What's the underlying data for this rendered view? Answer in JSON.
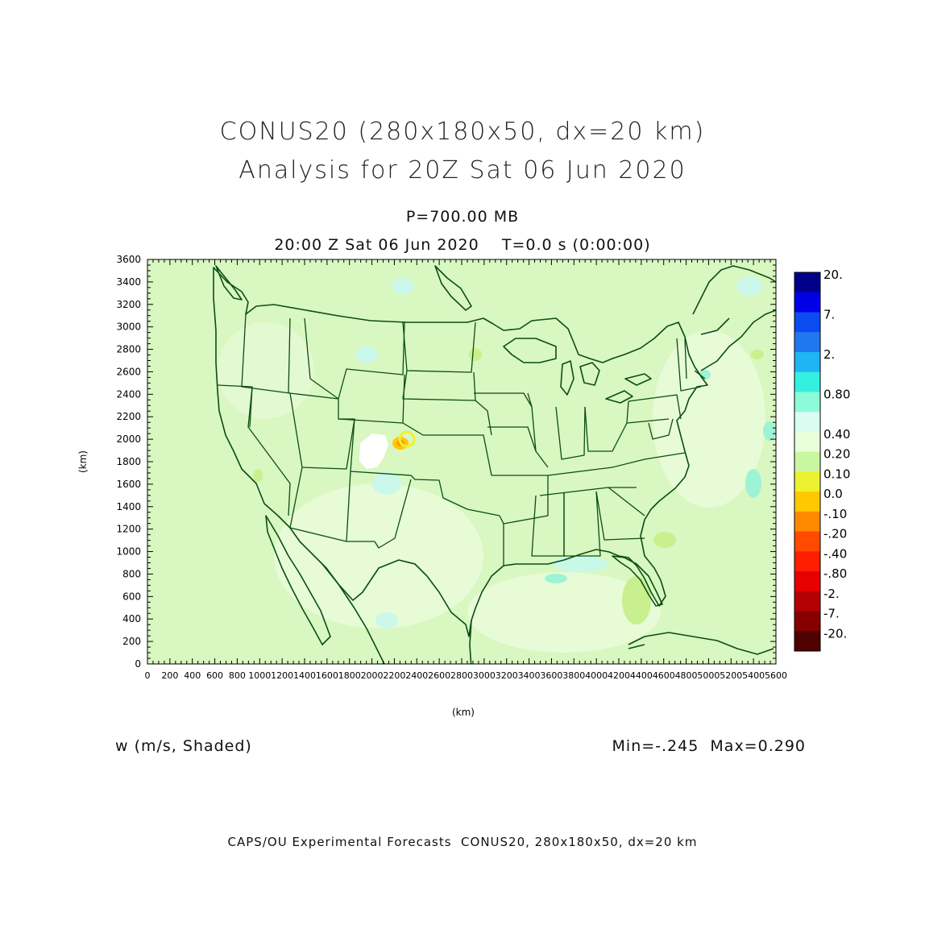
{
  "title": {
    "line1": "CONUS20 (280x180x50, dx=20 km)",
    "line2": "Analysis for 20Z Sat 06 Jun 2020"
  },
  "level_label": "P=700.00 MB",
  "time_label": "20:00 Z Sat 06 Jun 2020    T=0.0 s (0:00:00)",
  "field_label": "w (m/s, Shaded)",
  "minmax_label": "Min=-.245  Max=0.290",
  "credit": "CAPS/OU Experimental Forecasts  CONUS20, 280x180x50, dx=20 km",
  "colors": {
    "background": "#d9f7c0",
    "boundary": "#0b4d16"
  },
  "chart_data": {
    "type": "heatmap",
    "xlabel": "(km)",
    "ylabel": "(km)",
    "xlim": [
      0,
      5600
    ],
    "ylim": [
      0,
      3600
    ],
    "x_ticks": [
      0,
      200,
      400,
      600,
      800,
      1000,
      1200,
      1400,
      1600,
      1800,
      2000,
      2200,
      2400,
      2600,
      2800,
      3000,
      3200,
      3400,
      3600,
      3800,
      4000,
      4200,
      4400,
      4600,
      4800,
      5000,
      5200,
      5400,
      5600
    ],
    "y_ticks": [
      0,
      200,
      400,
      600,
      800,
      1000,
      1200,
      1400,
      1600,
      1800,
      2000,
      2200,
      2400,
      2600,
      2800,
      3000,
      3200,
      3400,
      3600
    ],
    "colorbar": {
      "labels": [
        "20.",
        "7.",
        "2.",
        "0.80",
        "0.40",
        "0.20",
        "0.10",
        "0.0",
        "-.10",
        "-.20",
        "-.40",
        "-.80",
        "-2.",
        "-7.",
        "-20."
      ],
      "colors": [
        "#00008b",
        "#0000e6",
        "#0a4cf0",
        "#1f78ee",
        "#1fb4f2",
        "#33f0e0",
        "#8cfbd8",
        "#dafdf2",
        "#e9ffdc",
        "#c8f7a0",
        "#ecf230",
        "#ffc800",
        "#ff8a00",
        "#ff4a00",
        "#ff1e00",
        "#e60000",
        "#b40000",
        "#860000",
        "#4f0000"
      ],
      "top_label_index": [
        0,
        2,
        4,
        6,
        8,
        9,
        10,
        11,
        12,
        13,
        14,
        15,
        16,
        17,
        18
      ]
    },
    "min": -0.245,
    "max": 0.29
  }
}
